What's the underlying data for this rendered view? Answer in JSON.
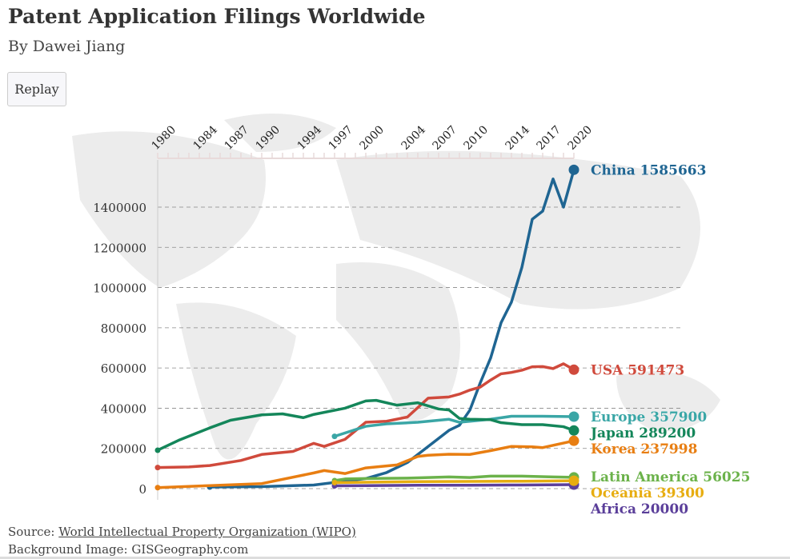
{
  "header": {
    "title": "Patent Application Filings Worldwide",
    "subtitle": "By Dawei Jiang",
    "replay_label": "Replay"
  },
  "footer": {
    "source_prefix": "Source: ",
    "source_link": "World Intellectual Property Organization (WIPO)",
    "background": "Background Image: GISGeography.com"
  },
  "chart_data": {
    "type": "line",
    "title": "Patent Application Filings Worldwide",
    "subtitle": "By Dawei Jiang",
    "xlim": [
      1980,
      2020
    ],
    "ylim": [
      0,
      1400000
    ],
    "x_tick_labels": [
      "1980",
      "1984",
      "1987",
      "1990",
      "1994",
      "1997",
      "2000",
      "2004",
      "2007",
      "2010",
      "2014",
      "2017",
      "2020"
    ],
    "y_ticks": [
      0,
      200000,
      400000,
      600000,
      800000,
      1000000,
      1200000,
      1400000
    ],
    "grid": "horizontal dashed",
    "series": [
      {
        "name": "China",
        "label": "China 1585663",
        "color": "#1f6592",
        "x": [
          1985,
          1990,
          1995,
          2000,
          2002,
          2004,
          2006,
          2008,
          2009,
          2010,
          2011,
          2012,
          2013,
          2014,
          2015,
          2016,
          2017,
          2018,
          2019,
          2020
        ],
        "y": [
          8000,
          10000,
          18000,
          50000,
          80000,
          130000,
          210000,
          290000,
          315000,
          390000,
          526000,
          650000,
          825000,
          928000,
          1100000,
          1340000,
          1380000,
          1540000,
          1400000,
          1585663
        ]
      },
      {
        "name": "USA",
        "label": "USA 591473",
        "color": "#d04a3c",
        "x": [
          1980,
          1983,
          1985,
          1988,
          1990,
          1993,
          1995,
          1996,
          1998,
          2000,
          2002,
          2004,
          2006,
          2008,
          2009,
          2010,
          2011,
          2012,
          2013,
          2014,
          2015,
          2016,
          2017,
          2018,
          2019,
          2020
        ],
        "y": [
          105000,
          108000,
          115000,
          140000,
          170000,
          185000,
          225000,
          210000,
          245000,
          330000,
          335000,
          356000,
          450000,
          456000,
          470000,
          490000,
          505000,
          540000,
          571000,
          578000,
          589000,
          606000,
          607000,
          597000,
          621000,
          591473
        ]
      },
      {
        "name": "Europe",
        "label": "Europe 357900",
        "color": "#3aa6a6",
        "x": [
          1997,
          2000,
          2002,
          2005,
          2008,
          2009,
          2012,
          2014,
          2017,
          2020
        ],
        "y": [
          260000,
          310000,
          322000,
          330000,
          345000,
          330000,
          345000,
          360000,
          360000,
          357900
        ]
      },
      {
        "name": "Japan",
        "label": "Japan 289200",
        "color": "#14865a",
        "x": [
          1980,
          1982,
          1985,
          1987,
          1990,
          1992,
          1994,
          1995,
          1998,
          2000,
          2001,
          2003,
          2005,
          2007,
          2008,
          2009,
          2010,
          2012,
          2013,
          2015,
          2017,
          2019,
          2020
        ],
        "y": [
          191000,
          240000,
          302000,
          340000,
          367000,
          372000,
          353000,
          369000,
          400000,
          436000,
          439000,
          415000,
          427000,
          396000,
          391000,
          349000,
          345000,
          343000,
          328000,
          318000,
          318000,
          308000,
          289200
        ]
      },
      {
        "name": "Korea",
        "label": "Korea 237998",
        "color": "#e87e12",
        "x": [
          1980,
          1985,
          1990,
          1995,
          1996,
          1998,
          2000,
          2003,
          2005,
          2006,
          2008,
          2010,
          2012,
          2014,
          2016,
          2017,
          2020
        ],
        "y": [
          5000,
          15000,
          25000,
          78000,
          90000,
          75000,
          103000,
          118000,
          160000,
          166000,
          171000,
          170000,
          189000,
          210000,
          208000,
          204000,
          237998
        ]
      },
      {
        "name": "Latin America",
        "label": "Latin America 56025",
        "color": "#6bb24a",
        "x": [
          1997,
          1998,
          2000,
          2004,
          2008,
          2010,
          2012,
          2015,
          2018,
          2020
        ],
        "y": [
          40000,
          48000,
          50000,
          52000,
          58000,
          55000,
          62000,
          62000,
          58000,
          56025
        ]
      },
      {
        "name": "Africa",
        "label": "Africa 20000",
        "color": "#5b3f9a",
        "x": [
          1997,
          2000,
          2005,
          2010,
          2015,
          2020
        ],
        "y": [
          14000,
          15000,
          17000,
          17000,
          18000,
          20000
        ]
      },
      {
        "name": "Oceania",
        "label": "Oceania 39300",
        "color": "#e7ad10",
        "x": [
          1997,
          2000,
          2005,
          2010,
          2015,
          2020
        ],
        "y": [
          30000,
          32000,
          35000,
          36000,
          37000,
          39300
        ]
      }
    ]
  }
}
